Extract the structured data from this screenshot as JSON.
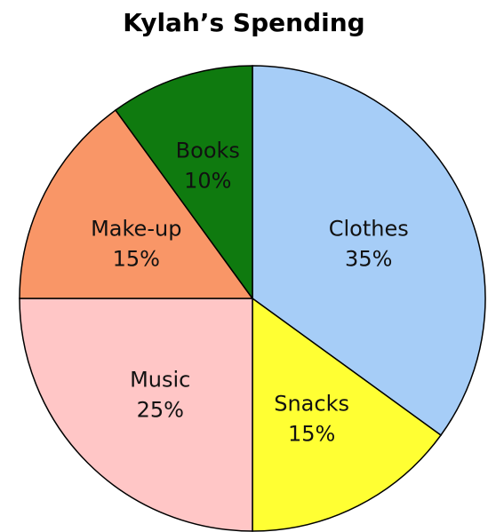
{
  "chart_data": {
    "type": "pie",
    "title": "Kylah’s Spending",
    "unit": "%",
    "slices": [
      {
        "label": "Clothes",
        "value": 35,
        "value_label": "35%",
        "color": "#a6cdf7"
      },
      {
        "label": "Snacks",
        "value": 15,
        "value_label": "15%",
        "color": "#ffff33"
      },
      {
        "label": "Music",
        "value": 25,
        "value_label": "25%",
        "color": "#ffc6c6"
      },
      {
        "label": "Make-up",
        "value": 15,
        "value_label": "15%",
        "color": "#f99667"
      },
      {
        "label": "Books",
        "value": 10,
        "value_label": "10%",
        "color": "#0f7a0f"
      }
    ],
    "start_angle_deg": 0,
    "direction": "clockwise",
    "legend": "none"
  }
}
